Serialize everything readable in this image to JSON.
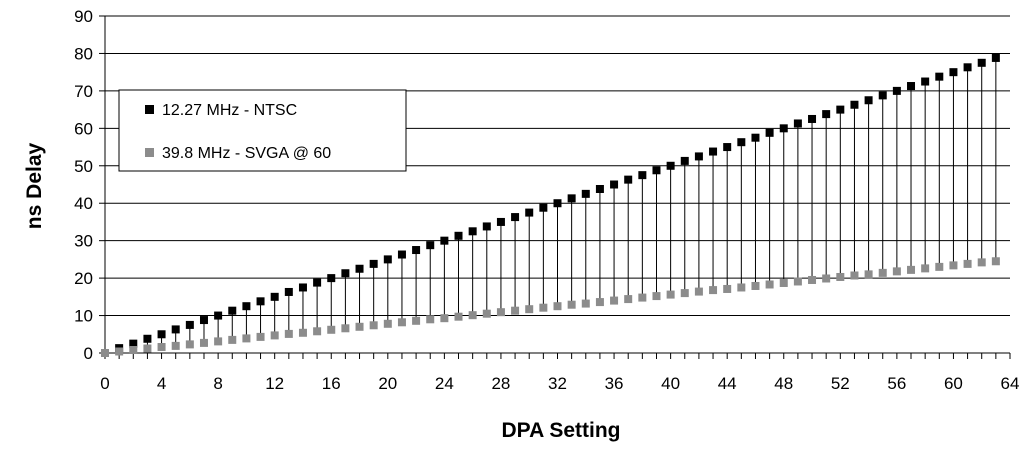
{
  "chart_data": {
    "type": "scatter",
    "xlabel": "DPA Setting",
    "ylabel": "ns Delay",
    "xlim": [
      0,
      64
    ],
    "ylim": [
      0,
      90
    ],
    "x_ticks": [
      0,
      4,
      8,
      12,
      16,
      20,
      24,
      28,
      32,
      36,
      40,
      44,
      48,
      52,
      56,
      60,
      64
    ],
    "y_ticks": [
      0,
      10,
      20,
      30,
      40,
      50,
      60,
      70,
      80,
      90
    ],
    "grid": "horizontal",
    "legend_position": "top-left",
    "drop_lines": true,
    "x": [
      0,
      1,
      2,
      3,
      4,
      5,
      6,
      7,
      8,
      9,
      10,
      11,
      12,
      13,
      14,
      15,
      16,
      17,
      18,
      19,
      20,
      21,
      22,
      23,
      24,
      25,
      26,
      27,
      28,
      29,
      30,
      31,
      32,
      33,
      34,
      35,
      36,
      37,
      38,
      39,
      40,
      41,
      42,
      43,
      44,
      45,
      46,
      47,
      48,
      49,
      50,
      51,
      52,
      53,
      54,
      55,
      56,
      57,
      58,
      59,
      60,
      61,
      62,
      63
    ],
    "series": [
      {
        "name": "12.27 MHz - NTSC",
        "color": "#000000",
        "values": [
          0.0,
          1.3,
          2.5,
          3.8,
          5.0,
          6.3,
          7.5,
          8.8,
          10.0,
          11.3,
          12.5,
          13.8,
          15.0,
          16.3,
          17.5,
          18.8,
          20.0,
          21.3,
          22.5,
          23.8,
          25.0,
          26.3,
          27.5,
          28.8,
          30.0,
          31.3,
          32.5,
          33.8,
          35.0,
          36.3,
          37.5,
          38.8,
          40.0,
          41.3,
          42.5,
          43.8,
          45.0,
          46.3,
          47.5,
          48.8,
          50.0,
          51.3,
          52.5,
          53.8,
          55.0,
          56.3,
          57.5,
          58.8,
          60.0,
          61.3,
          62.5,
          63.8,
          65.0,
          66.3,
          67.5,
          68.8,
          70.0,
          71.3,
          72.5,
          73.8,
          75.0,
          76.3,
          77.5,
          78.8
        ]
      },
      {
        "name": "39.8 MHz - SVGA @ 60",
        "color": "#8c8c8c",
        "values": [
          0.0,
          0.4,
          0.8,
          1.2,
          1.6,
          1.9,
          2.3,
          2.7,
          3.1,
          3.5,
          3.9,
          4.3,
          4.7,
          5.1,
          5.4,
          5.8,
          6.2,
          6.6,
          7.0,
          7.4,
          7.8,
          8.2,
          8.6,
          9.0,
          9.3,
          9.7,
          10.1,
          10.5,
          10.9,
          11.3,
          11.7,
          12.1,
          12.5,
          12.9,
          13.2,
          13.6,
          14.0,
          14.4,
          14.8,
          15.2,
          15.6,
          16.0,
          16.4,
          16.8,
          17.1,
          17.5,
          17.9,
          18.3,
          18.7,
          19.1,
          19.5,
          19.9,
          20.3,
          20.7,
          21.0,
          21.4,
          21.8,
          22.2,
          22.6,
          23.0,
          23.4,
          23.8,
          24.2,
          24.5
        ]
      }
    ]
  }
}
